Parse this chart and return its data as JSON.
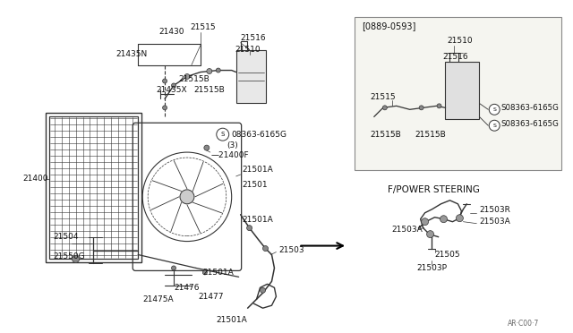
{
  "bg_color": "#ffffff",
  "line_color": "#333333",
  "text_color": "#111111",
  "footer": "AR·C00·7",
  "inset1_label": "[0889-0593]",
  "inset2_label": "F/POWER STEERING",
  "fig_w": 6.4,
  "fig_h": 3.72,
  "dpi": 100
}
